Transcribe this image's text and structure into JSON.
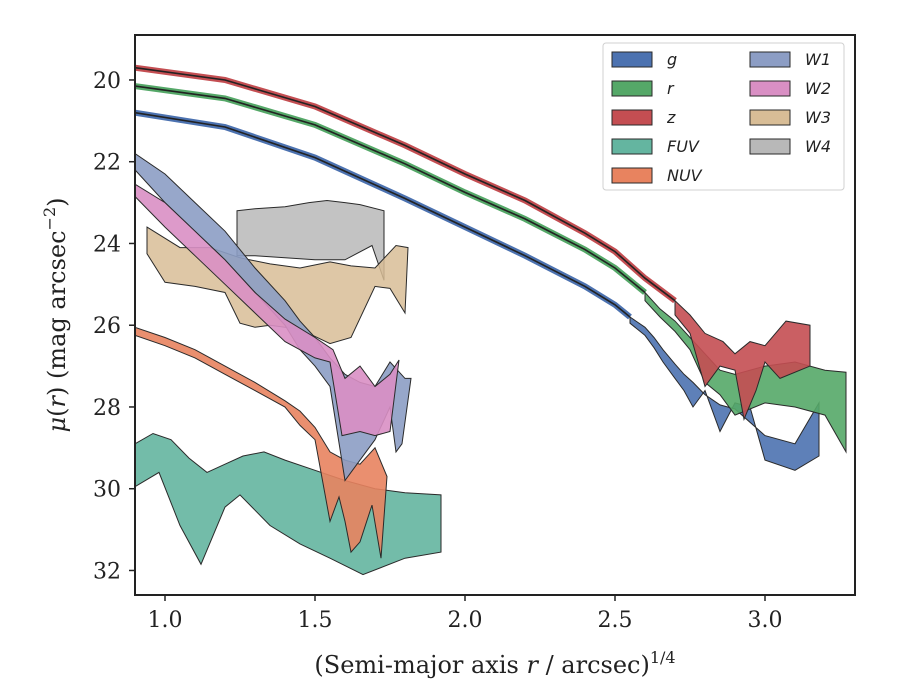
{
  "chart_data": {
    "type": "area",
    "xlabel": "(Semi-major axis r / arcsec)",
    "xlabel_italic_symbol": "r",
    "xlabel_superscript": "1/4",
    "ylabel": "μ(r) (mag arcsec",
    "ylabel_superscript": "−2",
    "ylabel_tail": ")",
    "xlim": [
      0.9,
      3.3
    ],
    "ylim": [
      32.6,
      18.9
    ],
    "y_inverted": true,
    "x_ticks": [
      1.0,
      1.5,
      2.0,
      2.5,
      3.0
    ],
    "x_tick_labels": [
      "1.0",
      "1.5",
      "2.0",
      "2.5",
      "3.0"
    ],
    "y_ticks": [
      20,
      22,
      24,
      26,
      28,
      30,
      32
    ],
    "y_tick_labels": [
      "20",
      "22",
      "24",
      "26",
      "28",
      "30",
      "32"
    ],
    "grid": false,
    "legend_position": "top-right",
    "legend_columns": 2,
    "series": [
      {
        "name": "g",
        "color": "#4c72b0",
        "core_x": [
          0.9,
          1.2,
          1.5,
          1.8,
          2.0,
          2.2,
          2.4,
          2.5,
          2.55
        ],
        "core_y": [
          20.8,
          21.15,
          21.9,
          22.9,
          23.6,
          24.3,
          25.05,
          25.5,
          25.8
        ],
        "upper_x": [
          2.55,
          2.6,
          2.63,
          2.66,
          2.7,
          2.73,
          2.76,
          2.8,
          2.85,
          2.9,
          3.0,
          3.1,
          3.18
        ],
        "upper_y": [
          25.8,
          26.05,
          26.3,
          26.6,
          26.95,
          27.2,
          27.4,
          27.7,
          27.95,
          28.05,
          28.7,
          28.9,
          27.9
        ],
        "lower_x": [
          3.18,
          3.18,
          3.1,
          3.0,
          2.95,
          2.9,
          2.85,
          2.8,
          2.76,
          2.73,
          2.7,
          2.66,
          2.63,
          2.6,
          2.55
        ],
        "lower_y": [
          27.9,
          29.2,
          29.55,
          29.3,
          28.0,
          27.9,
          28.6,
          27.6,
          28.0,
          27.6,
          27.3,
          26.9,
          26.55,
          26.25,
          25.95
        ]
      },
      {
        "name": "r",
        "color": "#55a868",
        "core_x": [
          0.9,
          1.2,
          1.5,
          1.8,
          2.0,
          2.2,
          2.4,
          2.5,
          2.6
        ],
        "core_y": [
          20.15,
          20.45,
          21.1,
          22.05,
          22.75,
          23.4,
          24.15,
          24.6,
          25.2
        ],
        "upper_x": [
          2.6,
          2.65,
          2.7,
          2.75,
          2.8,
          2.85,
          2.9,
          3.0,
          3.1,
          3.2,
          3.27
        ],
        "upper_y": [
          25.2,
          25.6,
          25.9,
          26.3,
          26.7,
          27.1,
          27.2,
          27.0,
          26.9,
          27.1,
          27.15
        ],
        "lower_x": [
          3.27,
          3.27,
          3.2,
          3.1,
          3.0,
          2.9,
          2.85,
          2.8,
          2.75,
          2.7,
          2.65,
          2.6
        ],
        "lower_y": [
          27.15,
          29.1,
          28.2,
          28.0,
          27.9,
          28.2,
          27.7,
          27.4,
          26.6,
          26.15,
          25.8,
          25.4
        ]
      },
      {
        "name": "z",
        "color": "#c44e52",
        "core_x": [
          0.9,
          1.2,
          1.5,
          1.8,
          2.0,
          2.2,
          2.4,
          2.5,
          2.6,
          2.7
        ],
        "core_y": [
          19.7,
          20.0,
          20.65,
          21.6,
          22.3,
          22.95,
          23.75,
          24.2,
          24.85,
          25.4
        ],
        "upper_x": [
          2.7,
          2.75,
          2.8,
          2.86,
          2.9,
          2.95,
          3.0,
          3.07,
          3.15
        ],
        "upper_y": [
          25.4,
          25.75,
          26.2,
          26.4,
          26.7,
          26.4,
          26.5,
          25.9,
          26.0
        ],
        "lower_x": [
          3.15,
          3.15,
          3.05,
          3.0,
          2.97,
          2.93,
          2.9,
          2.85,
          2.8,
          2.75,
          2.7
        ],
        "lower_y": [
          26.0,
          27.0,
          27.3,
          26.9,
          27.6,
          28.3,
          27.1,
          27.0,
          27.5,
          26.2,
          25.75
        ]
      },
      {
        "name": "FUV",
        "color": "#64b5a0",
        "upper_x": [
          0.9,
          0.96,
          1.02,
          1.08,
          1.14,
          1.2,
          1.26,
          1.33,
          1.4,
          1.5,
          1.6,
          1.7,
          1.8,
          1.92
        ],
        "upper_y": [
          28.9,
          28.65,
          28.8,
          29.25,
          29.6,
          29.4,
          29.2,
          29.1,
          29.3,
          29.55,
          29.8,
          30.0,
          30.1,
          30.15
        ],
        "lower_x": [
          1.92,
          1.8,
          1.66,
          1.55,
          1.45,
          1.35,
          1.25,
          1.2,
          1.12,
          1.05,
          0.98,
          0.9
        ],
        "lower_y": [
          31.55,
          31.7,
          32.1,
          31.7,
          31.35,
          30.9,
          30.15,
          30.45,
          31.85,
          30.9,
          29.6,
          29.95
        ]
      },
      {
        "name": "NUV",
        "color": "#e8835f",
        "upper_x": [
          0.9,
          1.0,
          1.1,
          1.2,
          1.3,
          1.4,
          1.45,
          1.5,
          1.55,
          1.6,
          1.65,
          1.7,
          1.74
        ],
        "upper_y": [
          26.05,
          26.3,
          26.6,
          27.0,
          27.4,
          27.85,
          28.1,
          28.5,
          29.1,
          29.3,
          29.4,
          29.0,
          29.7
        ],
        "lower_x": [
          1.74,
          1.72,
          1.69,
          1.65,
          1.62,
          1.6,
          1.58,
          1.55,
          1.5,
          1.45,
          1.4,
          1.3,
          1.2,
          1.1,
          1.0,
          0.9
        ],
        "lower_y": [
          29.7,
          31.7,
          30.4,
          31.3,
          31.55,
          30.8,
          30.2,
          30.8,
          28.8,
          28.45,
          28.0,
          27.6,
          27.2,
          26.8,
          26.5,
          26.25
        ]
      },
      {
        "name": "W1",
        "color": "#8c9dc4",
        "upper_x": [
          0.9,
          1.0,
          1.1,
          1.2,
          1.3,
          1.4,
          1.45,
          1.5,
          1.55,
          1.6,
          1.65,
          1.7,
          1.75,
          1.8,
          1.82
        ],
        "upper_y": [
          21.8,
          22.3,
          23.0,
          23.7,
          24.6,
          25.4,
          25.9,
          26.3,
          26.8,
          27.2,
          27.4,
          27.5,
          26.9,
          27.3,
          27.3
        ],
        "lower_x": [
          1.82,
          1.79,
          1.77,
          1.75,
          1.7,
          1.65,
          1.6,
          1.55,
          1.5,
          1.45,
          1.4,
          1.3,
          1.2,
          1.1,
          1.0,
          0.9
        ],
        "lower_y": [
          27.3,
          28.9,
          29.1,
          28.0,
          28.8,
          29.3,
          29.8,
          27.5,
          27.0,
          26.6,
          26.0,
          25.2,
          24.4,
          23.7,
          23.0,
          22.2
        ]
      },
      {
        "name": "W2",
        "color": "#d98fc4",
        "upper_x": [
          0.9,
          1.0,
          1.1,
          1.2,
          1.3,
          1.4,
          1.5,
          1.56,
          1.6,
          1.65,
          1.7,
          1.75,
          1.78
        ],
        "upper_y": [
          22.55,
          23.0,
          23.7,
          24.4,
          25.2,
          25.85,
          26.3,
          26.6,
          27.3,
          27.0,
          27.5,
          27.2,
          26.85
        ],
        "lower_x": [
          1.78,
          1.75,
          1.7,
          1.65,
          1.59,
          1.55,
          1.5,
          1.4,
          1.3,
          1.2,
          1.1,
          1.0,
          0.9
        ],
        "lower_y": [
          26.85,
          28.6,
          28.7,
          28.6,
          28.7,
          26.9,
          26.8,
          26.4,
          25.7,
          25.0,
          24.3,
          23.6,
          22.85
        ]
      },
      {
        "name": "W3",
        "color": "#d8bd96",
        "upper_x": [
          0.94,
          1.05,
          1.15,
          1.25,
          1.35,
          1.45,
          1.55,
          1.62,
          1.7,
          1.77,
          1.81
        ],
        "upper_y": [
          23.6,
          24.1,
          24.1,
          24.35,
          24.5,
          24.6,
          24.45,
          24.55,
          24.6,
          24.05,
          24.1
        ],
        "lower_x": [
          1.81,
          1.8,
          1.75,
          1.7,
          1.62,
          1.55,
          1.45,
          1.35,
          1.3,
          1.25,
          1.2,
          1.1,
          1.0,
          0.94
        ],
        "lower_y": [
          24.1,
          25.7,
          25.1,
          25.05,
          26.3,
          26.45,
          26.1,
          26.0,
          26.05,
          25.95,
          25.2,
          25.05,
          24.95,
          24.25
        ]
      },
      {
        "name": "W4",
        "color": "#b8b8b8",
        "upper_x": [
          1.24,
          1.3,
          1.4,
          1.48,
          1.54,
          1.6,
          1.65,
          1.73
        ],
        "upper_y": [
          23.2,
          23.15,
          23.1,
          23.0,
          22.95,
          23.0,
          23.05,
          23.2
        ],
        "lower_x": [
          1.73,
          1.73,
          1.69,
          1.6,
          1.5,
          1.4,
          1.3,
          1.24
        ],
        "lower_y": [
          23.2,
          24.9,
          24.05,
          24.4,
          24.4,
          24.35,
          24.3,
          24.3
        ]
      }
    ]
  }
}
